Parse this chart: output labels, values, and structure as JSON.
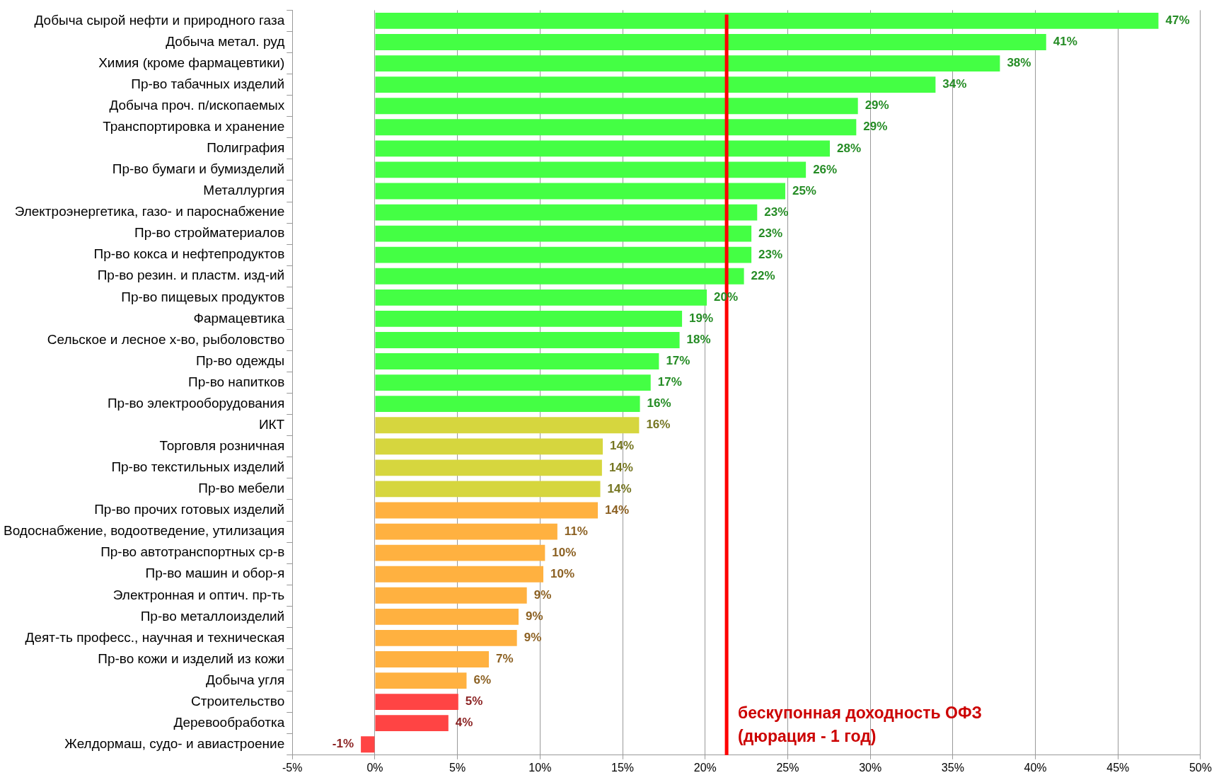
{
  "chart_data": {
    "type": "bar",
    "orientation": "horizontal",
    "categories": [
      "Добыча сырой нефти и природного газа",
      "Добыча метал. руд",
      "Химия (кроме фармацевтики)",
      "Пр-во табачных изделий",
      "Добыча проч. п/ископаемых",
      "Транспортировка и хранение",
      "Полиграфия",
      "Пр-во бумаги и бумизделий",
      "Металлургия",
      "Электроэнергетика, газо- и пароснабжение",
      "Пр-во стройматериалов",
      "Пр-во кокса и нефтепродуктов",
      "Пр-во резин. и пластм. изд-ий",
      "Пр-во пищевых продуктов",
      "Фармацевтика",
      "Сельское и лесное х-во, рыболовство",
      "Пр-во одежды",
      "Пр-во напитков",
      "Пр-во электрооборудования",
      "ИКТ",
      "Торговля розничная",
      "Пр-во текстильных изделий",
      "Пр-во мебели",
      "Пр-во прочих готовых изделий",
      "Водоснабжение, водоотведение, утилизация",
      "Пр-во автотранспортных ср-в",
      "Пр-во машин и обор-я",
      "Электронная и оптич. пр-ть",
      "Пр-во металлоизделий",
      "Деят-ть професс., научная и техническая",
      "Пр-во кожи и изделий из кожи",
      "Добыча угля",
      "Строительство",
      "Деревообработка",
      "Желдормаш, судо- и авиастроение"
    ],
    "values": [
      47.45,
      40.65,
      37.85,
      33.95,
      29.25,
      29.15,
      27.55,
      26.1,
      24.85,
      23.15,
      22.8,
      22.8,
      22.35,
      20.1,
      18.6,
      18.45,
      17.2,
      16.7,
      16.05,
      16.0,
      13.8,
      13.75,
      13.65,
      13.5,
      11.05,
      10.3,
      10.2,
      9.2,
      8.7,
      8.6,
      6.9,
      5.55,
      5.05,
      4.45,
      -0.85
    ],
    "value_labels": [
      "47%",
      "41%",
      "38%",
      "34%",
      "29%",
      "29%",
      "28%",
      "26%",
      "25%",
      "23%",
      "23%",
      "23%",
      "22%",
      "20%",
      "19%",
      "18%",
      "17%",
      "17%",
      "16%",
      "16%",
      "14%",
      "14%",
      "14%",
      "14%",
      "11%",
      "10%",
      "10%",
      "9%",
      "9%",
      "9%",
      "7%",
      "6%",
      "5%",
      "4%",
      "-1%"
    ],
    "colors": [
      "#44ff44",
      "#44ff44",
      "#44ff44",
      "#44ff44",
      "#44ff44",
      "#44ff44",
      "#44ff44",
      "#44ff44",
      "#44ff44",
      "#44ff44",
      "#44ff44",
      "#44ff44",
      "#44ff44",
      "#44ff44",
      "#44ff44",
      "#44ff44",
      "#44ff44",
      "#44ff44",
      "#44ff44",
      "#d6d63e",
      "#d6d63e",
      "#d6d63e",
      "#d6d63e",
      "#ffb140",
      "#ffb140",
      "#ffb140",
      "#ffb140",
      "#ffb140",
      "#ffb140",
      "#ffb140",
      "#ffb140",
      "#ffb140",
      "#ff4444",
      "#ff4444",
      "#ff4444"
    ],
    "xlim": [
      -5,
      50
    ],
    "xticks": [
      {
        "value": -5,
        "label": "-5%"
      },
      {
        "value": 0,
        "label": "0%"
      },
      {
        "value": 5,
        "label": "5%"
      },
      {
        "value": 10,
        "label": "10%"
      },
      {
        "value": 15,
        "label": "15%"
      },
      {
        "value": 20,
        "label": "20%"
      },
      {
        "value": 25,
        "label": "25%"
      },
      {
        "value": 30,
        "label": "30%"
      },
      {
        "value": 35,
        "label": "35%"
      },
      {
        "value": 40,
        "label": "40%"
      },
      {
        "value": 45,
        "label": "45%"
      },
      {
        "value": 50,
        "label": "50%"
      }
    ],
    "grid": "x",
    "legend": false,
    "ref_lines": [
      {
        "axis": "x",
        "value": 21.3,
        "label": "бескупонная доходность ОФЗ\n(дюрация - 1 год)",
        "color": "#ff0000"
      }
    ]
  }
}
